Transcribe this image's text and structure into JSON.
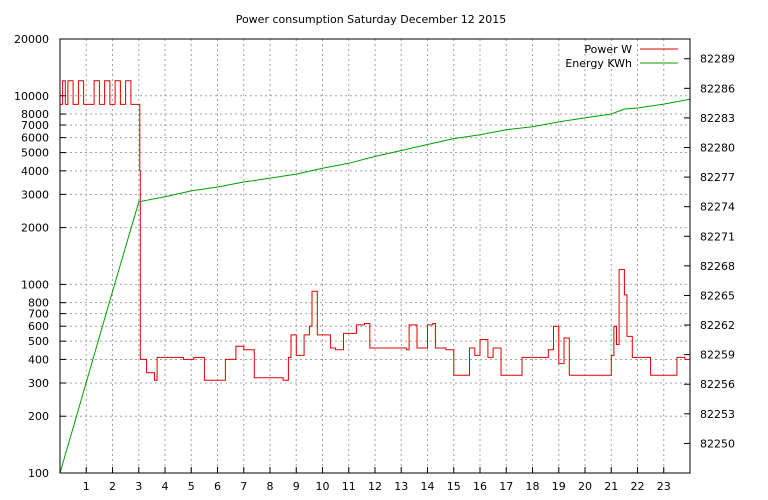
{
  "chart_data": {
    "type": "line",
    "title": "Power consumption Saturday December 12 2015",
    "xlabel": "",
    "ylabel": "",
    "y2label": "",
    "xlim": [
      0,
      24
    ],
    "ylim": [
      100,
      20000
    ],
    "y_scale": "log",
    "y2lim": [
      82247,
      82291
    ],
    "grid": true,
    "legend_position": "top-right",
    "x_ticks": [
      1,
      2,
      3,
      4,
      5,
      6,
      7,
      8,
      9,
      10,
      11,
      12,
      13,
      14,
      15,
      16,
      17,
      18,
      19,
      20,
      21,
      22,
      23
    ],
    "y_ticks": [
      100,
      200,
      300,
      400,
      500,
      600,
      700,
      800,
      1000,
      2000,
      3000,
      4000,
      5000,
      6000,
      7000,
      8000,
      10000,
      20000
    ],
    "y2_ticks": [
      82250,
      82253,
      82256,
      82259,
      82262,
      82265,
      82268,
      82271,
      82274,
      82277,
      82280,
      82283,
      82286,
      82289
    ],
    "series": [
      {
        "name": "Power W",
        "color": "#e00000",
        "axis": "left",
        "x": [
          0,
          0.1,
          0.2,
          0.3,
          0.5,
          0.7,
          0.9,
          1.1,
          1.3,
          1.5,
          1.7,
          1.9,
          2.1,
          2.3,
          2.5,
          2.7,
          2.9,
          3.0,
          3.02,
          3.04,
          3.06,
          3.1,
          3.3,
          3.6,
          3.7,
          4.0,
          4.3,
          4.7,
          4.8,
          5.1,
          5.5,
          5.6,
          6.0,
          6.3,
          6.6,
          6.7,
          7.0,
          7.4,
          7.6,
          8.0,
          8.5,
          8.7,
          8.8,
          9.0,
          9.3,
          9.5,
          9.6,
          9.8,
          10.0,
          10.3,
          10.5,
          10.8,
          11.0,
          11.2,
          11.3,
          11.6,
          11.8,
          12.1,
          12.3,
          12.6,
          12.9,
          13.2,
          13.3,
          13.6,
          13.8,
          14.0,
          14.2,
          14.3,
          14.5,
          14.7,
          15.0,
          15.3,
          15.6,
          15.8,
          16.0,
          16.3,
          16.5,
          16.8,
          17.0,
          17.3,
          17.6,
          18.0,
          18.4,
          18.6,
          18.8,
          19.0,
          19.2,
          19.4,
          19.6,
          20.0,
          20.3,
          20.6,
          20.8,
          21.0,
          21.1,
          21.2,
          21.3,
          21.4,
          21.5,
          21.6,
          21.8,
          22.0,
          22.5,
          22.7,
          23.0,
          23.2,
          23.5,
          23.8,
          23.9
        ],
        "values": [
          9000,
          12000,
          9000,
          12000,
          9000,
          12000,
          9000,
          9000,
          12000,
          9000,
          12000,
          9000,
          12000,
          9000,
          12000,
          9000,
          9000,
          9000,
          9000,
          4000,
          400,
          400,
          340,
          310,
          410,
          410,
          410,
          400,
          400,
          410,
          310,
          310,
          310,
          400,
          400,
          470,
          450,
          320,
          320,
          320,
          310,
          410,
          540,
          420,
          540,
          600,
          920,
          540,
          540,
          460,
          450,
          550,
          550,
          550,
          610,
          620,
          460,
          460,
          460,
          460,
          460,
          450,
          610,
          460,
          460,
          610,
          620,
          460,
          460,
          450,
          330,
          330,
          460,
          420,
          510,
          410,
          460,
          330,
          330,
          330,
          410,
          410,
          410,
          450,
          600,
          380,
          520,
          330,
          330,
          330,
          330,
          330,
          330,
          420,
          600,
          480,
          1200,
          1200,
          880,
          530,
          410,
          410,
          330,
          330,
          330,
          330,
          410,
          400,
          400
        ]
      },
      {
        "name": "Energy KWh",
        "color": "#00a000",
        "axis": "right",
        "x": [
          0,
          1,
          2,
          3,
          4,
          5,
          6,
          7,
          8,
          9,
          10,
          11,
          12,
          13,
          14,
          15,
          16,
          17,
          18,
          19,
          20,
          21,
          21.5,
          22,
          23,
          24
        ],
        "values": [
          82247.0,
          82256.2,
          82265.4,
          82274.5,
          82275.0,
          82275.6,
          82276.0,
          82276.5,
          82276.9,
          82277.3,
          82277.9,
          82278.4,
          82279.1,
          82279.7,
          82280.3,
          82280.9,
          82281.3,
          82281.8,
          82282.1,
          82282.6,
          82283.0,
          82283.4,
          82283.9,
          82284.0,
          82284.4,
          82284.9
        ]
      }
    ]
  }
}
